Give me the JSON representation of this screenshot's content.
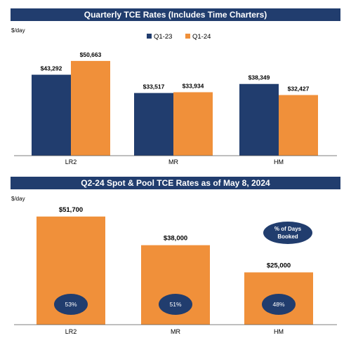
{
  "colors": {
    "navy": "#213d6e",
    "orange": "#f0903a",
    "banner": "#213d6e"
  },
  "chart_data": [
    {
      "type": "bar",
      "title": "Quarterly TCE Rates (Includes Time Charters)",
      "ylabel": "$/day",
      "categories": [
        "LR2",
        "MR",
        "HM"
      ],
      "series": [
        {
          "name": "Q1-23",
          "values": [
            43292,
            33517,
            38349
          ],
          "labels": [
            "$43,292",
            "$33,517",
            "$38,349"
          ]
        },
        {
          "name": "Q1-24",
          "values": [
            50663,
            33934,
            32427
          ],
          "labels": [
            "$50,663",
            "$33,934",
            "$32,427"
          ]
        }
      ],
      "ylim": [
        0,
        60000
      ],
      "grid": false,
      "legend": "top-center"
    },
    {
      "type": "bar",
      "title": "Q2-24 Spot & Pool TCE Rates as of May 8, 2024",
      "ylabel": "$/day",
      "categories": [
        "LR2",
        "MR",
        "HM"
      ],
      "values": [
        51700,
        38000,
        25000
      ],
      "labels": [
        "$51,700",
        "$38,000",
        "$25,000"
      ],
      "days_booked": [
        "53%",
        "51%",
        "48%"
      ],
      "days_booked_note": [
        "% of Days",
        "Booked"
      ],
      "ylim": [
        0,
        58000
      ],
      "grid": false
    }
  ]
}
